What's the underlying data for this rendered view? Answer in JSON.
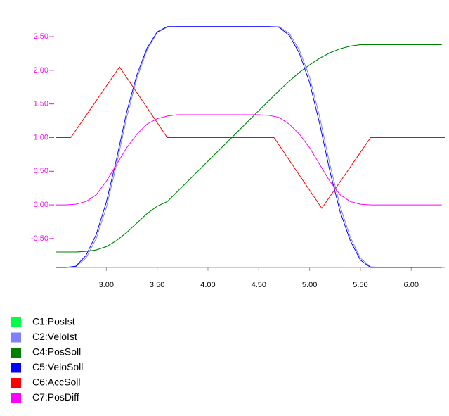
{
  "chart_data": {
    "type": "line",
    "xlim": [
      2.5,
      6.33
    ],
    "ylim": [
      -0.93,
      2.94
    ],
    "xticks": [
      {
        "value": 3,
        "label": "3.00"
      },
      {
        "value": 3.5,
        "label": "3.50"
      },
      {
        "value": 4,
        "label": "4.00"
      },
      {
        "value": 4.5,
        "label": "4.50"
      },
      {
        "value": 5,
        "label": "5.00"
      },
      {
        "value": 5.5,
        "label": "5.50"
      },
      {
        "value": 6,
        "label": "6.00"
      }
    ],
    "yticks": [
      {
        "value": -0.5,
        "label": "-0.50"
      },
      {
        "value": 0,
        "label": "0.00"
      },
      {
        "value": 0.5,
        "label": "0.50"
      },
      {
        "value": 1,
        "label": "1.00"
      },
      {
        "value": 1.5,
        "label": "1.50"
      },
      {
        "value": 2,
        "label": "2.00"
      },
      {
        "value": 2.5,
        "label": "2.50"
      }
    ],
    "x": [
      2.5,
      2.6,
      2.7,
      2.8,
      2.9,
      3.0,
      3.1,
      3.2,
      3.3,
      3.4,
      3.5,
      3.6,
      3.7,
      3.8,
      3.9,
      4.0,
      4.1,
      4.2,
      4.3,
      4.4,
      4.5,
      4.6,
      4.7,
      4.8,
      4.9,
      5.0,
      5.1,
      5.2,
      5.3,
      5.4,
      5.5,
      5.6,
      5.7,
      5.8,
      5.9,
      6.0,
      6.1,
      6.2,
      6.3
    ],
    "series": [
      {
        "name": "C1:PosIst",
        "color": "#00ff44",
        "values": [
          -0.7,
          -0.7,
          -0.7,
          -0.69,
          -0.67,
          -0.62,
          -0.53,
          -0.41,
          -0.27,
          -0.13,
          -0.02,
          0.05,
          0.2,
          0.35,
          0.5,
          0.65,
          0.8,
          0.95,
          1.1,
          1.25,
          1.4,
          1.55,
          1.7,
          1.84,
          1.97,
          2.08,
          2.18,
          2.26,
          2.32,
          2.36,
          2.38,
          2.38,
          2.38,
          2.38,
          2.38,
          2.38,
          2.38,
          2.38,
          2.38
        ]
      },
      {
        "name": "C2:VeloIst",
        "color": "#8080ff",
        "values": [
          -0.93,
          -0.93,
          -0.92,
          -0.79,
          -0.5,
          -0.04,
          0.6,
          1.3,
          1.88,
          2.3,
          2.56,
          2.64,
          2.65,
          2.65,
          2.65,
          2.65,
          2.65,
          2.65,
          2.65,
          2.65,
          2.65,
          2.65,
          2.65,
          2.55,
          2.3,
          1.9,
          1.3,
          0.6,
          -0.02,
          -0.48,
          -0.79,
          -0.92,
          -0.93,
          -0.93,
          -0.93,
          -0.93,
          -0.93,
          -0.93,
          -0.93
        ]
      },
      {
        "name": "C4:PosSoll",
        "color": "#008000",
        "values": [
          -0.7,
          -0.7,
          -0.7,
          -0.69,
          -0.67,
          -0.62,
          -0.53,
          -0.41,
          -0.27,
          -0.13,
          -0.02,
          0.05,
          0.2,
          0.35,
          0.5,
          0.65,
          0.8,
          0.95,
          1.1,
          1.25,
          1.4,
          1.55,
          1.7,
          1.84,
          1.97,
          2.08,
          2.18,
          2.26,
          2.32,
          2.36,
          2.38,
          2.38,
          2.38,
          2.38,
          2.38,
          2.38,
          2.38,
          2.38,
          2.38
        ]
      },
      {
        "name": "C5:VeloSoll",
        "color": "#0000ff",
        "values": [
          -0.93,
          -0.93,
          -0.91,
          -0.75,
          -0.44,
          0.04,
          0.68,
          1.38,
          1.93,
          2.33,
          2.57,
          2.65,
          2.65,
          2.65,
          2.65,
          2.65,
          2.65,
          2.65,
          2.65,
          2.65,
          2.65,
          2.65,
          2.64,
          2.52,
          2.25,
          1.82,
          1.2,
          0.5,
          -0.1,
          -0.53,
          -0.82,
          -0.93,
          -0.93,
          -0.93,
          -0.93,
          -0.93,
          -0.93,
          -0.93,
          -0.93
        ]
      },
      {
        "name": "C6:AccSoll",
        "color": "#ff0000",
        "x": [
          2.5,
          2.65,
          3.13,
          3.6,
          4.65,
          5.12,
          5.6,
          6.33
        ],
        "values": [
          1.0,
          1.0,
          2.05,
          1.0,
          1.0,
          -0.05,
          1.0,
          1.0
        ]
      },
      {
        "name": "C7:PosDiff",
        "color": "#ff00ff",
        "values": [
          0,
          0,
          0.01,
          0.05,
          0.15,
          0.35,
          0.6,
          0.85,
          1.05,
          1.2,
          1.28,
          1.32,
          1.34,
          1.34,
          1.34,
          1.34,
          1.34,
          1.34,
          1.34,
          1.34,
          1.34,
          1.33,
          1.3,
          1.2,
          1.05,
          0.85,
          0.6,
          0.35,
          0.15,
          0.05,
          0.01,
          0,
          0,
          0,
          0,
          0,
          0,
          0,
          0
        ]
      }
    ]
  }
}
